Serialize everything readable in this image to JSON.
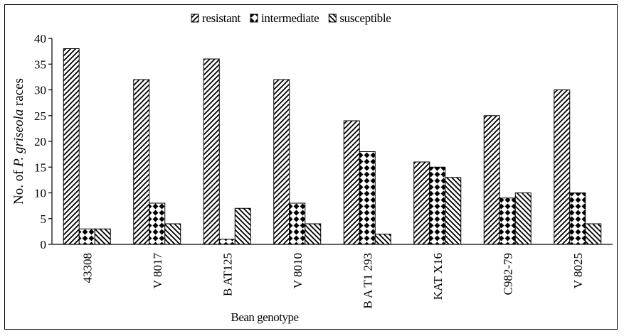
{
  "chart_data": {
    "type": "bar",
    "title": "",
    "xlabel": "Bean genotype",
    "ylabel_parts": [
      "No. of ",
      "P. griseola",
      " races"
    ],
    "ylim": [
      0,
      40
    ],
    "yticks": [
      0,
      5,
      10,
      15,
      20,
      25,
      30,
      35,
      40
    ],
    "grid": false,
    "legend_position": "top",
    "categories": [
      "43308",
      "V 8017",
      "B AT125",
      "V 8010",
      "B A T1 293",
      "KAT X16",
      "C982-79",
      "V 8025"
    ],
    "series": [
      {
        "name": "resistant",
        "pattern": "diagonal-forward",
        "values": [
          38,
          32,
          36,
          32,
          24,
          16,
          25,
          30
        ]
      },
      {
        "name": "intermediate",
        "pattern": "checker-diamond",
        "values": [
          3,
          8,
          1,
          8,
          18,
          15,
          9,
          10
        ]
      },
      {
        "name": "susceptible",
        "pattern": "diagonal-backward",
        "values": [
          3,
          4,
          7,
          4,
          2,
          13,
          10,
          4
        ]
      }
    ]
  }
}
